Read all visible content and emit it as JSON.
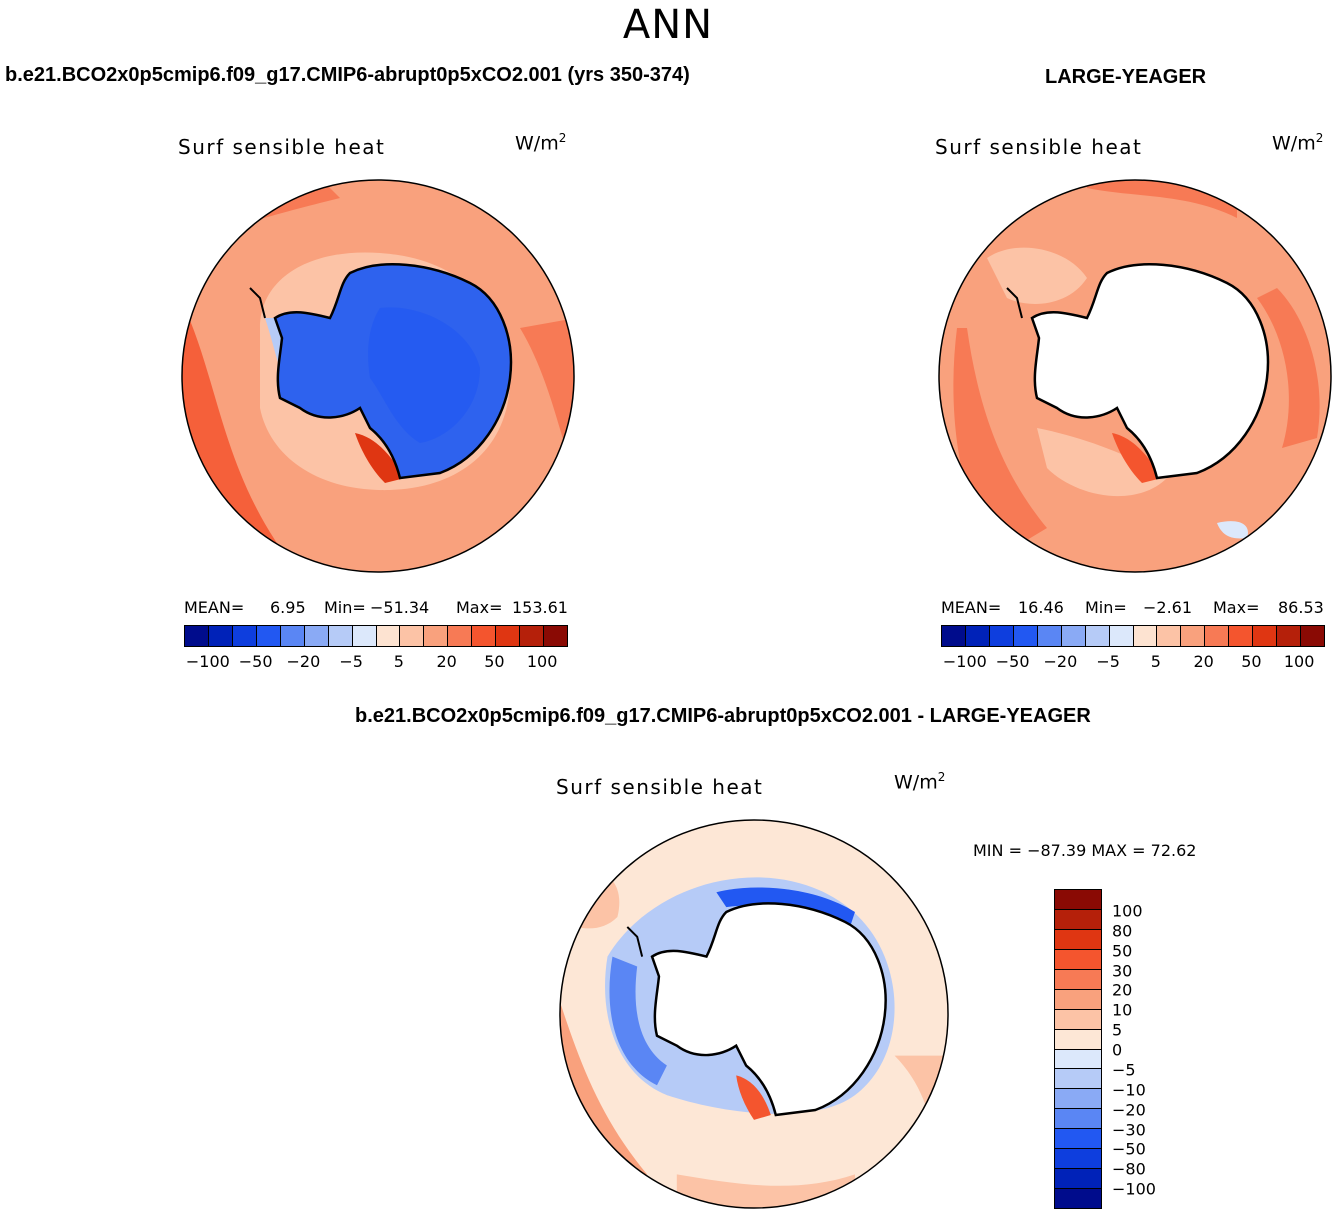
{
  "title": "ANN",
  "panels": [
    {
      "header": "b.e21.BCO2x0p5cmip6.f09_g17.CMIP6-abrupt0p5xCO2.001 (yrs 350-374)",
      "label": "Surf sensible heat",
      "units_base": "W/m",
      "units_exp": "2",
      "mean_label": "MEAN=",
      "mean": "6.95",
      "min_label": "Min=",
      "min": "−51.34",
      "max_label": "Max=",
      "max": "153.61"
    },
    {
      "header": "LARGE-YEAGER",
      "label": "Surf sensible heat",
      "units_base": "W/m",
      "units_exp": "2",
      "mean_label": "MEAN=",
      "mean": "16.46",
      "min_label": "Min=",
      "min": "−2.61",
      "max_label": "Max=",
      "max": "86.53"
    },
    {
      "header": "b.e21.BCO2x0p5cmip6.f09_g17.CMIP6-abrupt0p5xCO2.001 - LARGE-YEAGER",
      "label": "Surf sensible heat",
      "units_base": "W/m",
      "units_exp": "2",
      "minmax": "MIN = −87.39 MAX =  72.62"
    }
  ],
  "colorbar_top": {
    "colors": [
      "#000c8c",
      "#0022b8",
      "#0e3ede",
      "#2258f2",
      "#5a86f4",
      "#8aaaf5",
      "#b6cbf7",
      "#dce8fb",
      "#fde3d1",
      "#fcc3a6",
      "#f9a17d",
      "#f77a55",
      "#f4552e",
      "#df3612",
      "#b5200a",
      "#8a0a04"
    ],
    "ticks": [
      "−100",
      "−50",
      "−20",
      "−5",
      "5",
      "20",
      "50",
      "100"
    ]
  },
  "colorbar_diff": {
    "colors": [
      "#8a0a04",
      "#b5200a",
      "#df3612",
      "#f4552e",
      "#f77a55",
      "#f9a17d",
      "#fcc3a6",
      "#fde7d6",
      "#dce8fb",
      "#b6cbf7",
      "#8aaaf5",
      "#5a86f4",
      "#2258f2",
      "#0e3ede",
      "#0022b8",
      "#000c8c"
    ],
    "ticks": [
      "100",
      "80",
      "50",
      "30",
      "20",
      "10",
      "5",
      "0",
      "−5",
      "−10",
      "−20",
      "−30",
      "−50",
      "−80",
      "−100"
    ]
  },
  "map_colors": {
    "ocean_top_left": "#f9a17d",
    "ocean_top_right": "#f9a17d",
    "ocean_diff": "#fde7d6",
    "antarctica_model": "#2e62ee",
    "land_mask": "#ffffff",
    "strong_warm": "#f4552e",
    "cool": "#8aaaf5"
  }
}
